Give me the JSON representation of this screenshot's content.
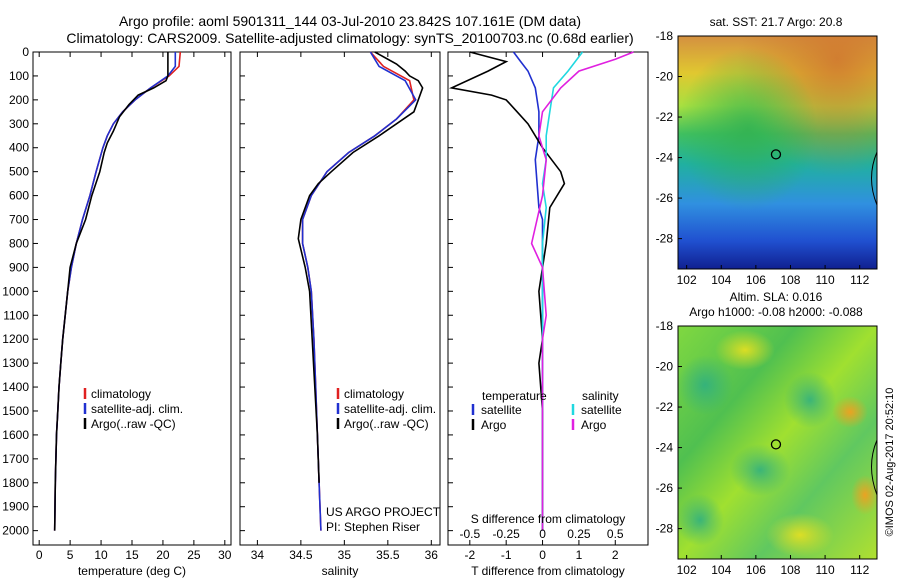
{
  "header": {
    "line1": "Argo profile: aoml 5901311_144 03-Jul-2010 23.842S 107.161E (DM data)",
    "line2": "Climatology: CARS2009. Satellite-adjusted climatology: synTS_20100703.nc (0.68d earlier)"
  },
  "colors": {
    "climatology": "#e02020",
    "satellite": "#2030d0",
    "argo": "#000000",
    "salinity_sat": "#20d8e0",
    "salinity_argo": "#e020e0"
  },
  "credits": {
    "project": "US ARGO PROJECT",
    "pi": "PI: Stephen Riser"
  },
  "watermark": "©IMOS 02-Aug-2017 20:52:10",
  "chart_data": [
    {
      "type": "line",
      "xlabel": "temperature (deg C)",
      "ylabel": "",
      "xlim": [
        -1,
        31
      ],
      "ylim": [
        2060,
        0
      ],
      "xticks": [
        0,
        5,
        10,
        15,
        20,
        25,
        30
      ],
      "yticks": [
        0,
        100,
        200,
        300,
        400,
        500,
        600,
        700,
        800,
        900,
        1000,
        1100,
        1200,
        1300,
        1400,
        1500,
        1600,
        1700,
        1800,
        1900,
        2000
      ],
      "legend": [
        "climatology",
        "satellite-adj. clim.",
        "Argo(..raw -QC)"
      ],
      "series": [
        {
          "name": "climatology",
          "color": "#e02020",
          "x": [
            22.8,
            22.6,
            21,
            18,
            15.5,
            13.5,
            12,
            11,
            10.3,
            9.2,
            8.2,
            7,
            6,
            5.2,
            4.6,
            4.2,
            3.8,
            3.5,
            3.2,
            3,
            2.8,
            2.6,
            2.5
          ],
          "y": [
            0,
            60,
            100,
            150,
            200,
            250,
            300,
            350,
            400,
            500,
            600,
            700,
            800,
            900,
            1000,
            1100,
            1200,
            1300,
            1400,
            1500,
            1600,
            1800,
            2000
          ]
        },
        {
          "name": "satellite-adj. clim.",
          "color": "#2030d0",
          "x": [
            22,
            22,
            20.8,
            18,
            15.5,
            13.5,
            12,
            11,
            10.3,
            9.2,
            8.2,
            7,
            6,
            5.2,
            4.6,
            4.2,
            3.8,
            3.5,
            3.2,
            3,
            2.8,
            2.6,
            2.5
          ],
          "y": [
            0,
            60,
            100,
            150,
            200,
            250,
            300,
            350,
            400,
            500,
            600,
            700,
            800,
            900,
            1000,
            1100,
            1200,
            1300,
            1400,
            1500,
            1600,
            1800,
            2000
          ]
        },
        {
          "name": "Argo(..raw -QC)",
          "color": "#000000",
          "x": [
            20.8,
            20.8,
            20.5,
            18.5,
            16,
            14.5,
            13,
            12,
            11,
            10.5,
            9.8,
            8.5,
            7.5,
            6,
            5,
            4.6,
            4.2,
            3.8,
            3.5,
            3.2,
            3,
            2.8,
            2.6,
            2.5
          ],
          "y": [
            0,
            100,
            120,
            150,
            180,
            220,
            270,
            330,
            380,
            420,
            500,
            600,
            700,
            800,
            900,
            1000,
            1100,
            1200,
            1300,
            1400,
            1500,
            1600,
            1800,
            2000
          ]
        }
      ]
    },
    {
      "type": "line",
      "xlabel": "salinity",
      "ylabel": "",
      "xlim": [
        33.8,
        36.1
      ],
      "ylim": [
        2060,
        0
      ],
      "xticks": [
        34,
        34.5,
        35,
        35.5,
        36
      ],
      "legend": [
        "climatology",
        "satellite-adj. clim.",
        "Argo(..raw -QC)"
      ],
      "series": [
        {
          "name": "climatology",
          "color": "#e02020",
          "x": [
            35.3,
            35.45,
            35.75,
            35.8,
            35.6,
            35.35,
            35.05,
            34.8,
            34.62,
            34.52,
            34.52,
            34.58,
            34.62,
            34.65,
            34.67,
            34.69,
            34.71,
            34.72,
            34.73
          ],
          "y": [
            0,
            60,
            120,
            200,
            280,
            350,
            420,
            500,
            600,
            700,
            800,
            900,
            1000,
            1200,
            1400,
            1600,
            1800,
            1900,
            2000
          ]
        },
        {
          "name": "satellite-adj. clim.",
          "color": "#2030d0",
          "x": [
            35.3,
            35.4,
            35.7,
            35.82,
            35.6,
            35.35,
            35.05,
            34.8,
            34.62,
            34.52,
            34.52,
            34.58,
            34.62,
            34.65,
            34.67,
            34.69,
            34.71,
            34.72,
            34.73
          ],
          "y": [
            0,
            60,
            120,
            200,
            280,
            350,
            420,
            500,
            600,
            700,
            800,
            900,
            1000,
            1200,
            1400,
            1600,
            1800,
            1900,
            2000
          ]
        },
        {
          "name": "Argo(..raw -QC)",
          "color": "#000000",
          "x": [
            35.35,
            35.6,
            35.7,
            35.75,
            35.85,
            35.9,
            35.85,
            35.8,
            35.6,
            35.4,
            35.1,
            34.85,
            34.7,
            34.6,
            34.5,
            34.47,
            34.55,
            34.6,
            34.63,
            34.66,
            34.69,
            34.71
          ],
          "y": [
            0,
            50,
            80,
            100,
            120,
            150,
            200,
            250,
            300,
            350,
            420,
            500,
            550,
            600,
            700,
            780,
            900,
            1000,
            1200,
            1400,
            1600,
            1800
          ]
        }
      ]
    },
    {
      "type": "line",
      "xlabel": "T difference from climatology",
      "top_label": "S difference from climatology",
      "xlim": [
        -2.6,
        2.9
      ],
      "ylim": [
        2060,
        0
      ],
      "xticks": [
        -2,
        -1,
        0,
        1,
        2
      ],
      "top_ticks": [
        "-0.5",
        "-0.25",
        "0",
        "0.25",
        "0.5"
      ],
      "top_ticks_at": [
        -2,
        -1,
        0,
        1,
        2
      ],
      "legend": {
        "temperature": [
          "satellite",
          "Argo"
        ],
        "salinity": [
          "satellite",
          "Argo"
        ],
        "temperature_title": "temperature",
        "salinity_title": "salinity"
      },
      "series": [
        {
          "name": "temperature satellite",
          "color": "#2030d0",
          "x": [
            -0.8,
            -0.6,
            -0.4,
            -0.2,
            -0.1,
            -0.1,
            -0.2,
            -0.1,
            0,
            0,
            0
          ],
          "y": [
            0,
            40,
            80,
            150,
            250,
            350,
            450,
            650,
            700,
            900,
            2000
          ]
        },
        {
          "name": "temperature Argo",
          "color": "#000000",
          "x": [
            -2,
            -1,
            -1.5,
            -2.5,
            -1.4,
            -1,
            -0.7,
            -0.4,
            0,
            0.5,
            0.6,
            0.2,
            0.1,
            -0.1,
            0,
            -0.1,
            0,
            0
          ],
          "y": [
            0,
            40,
            80,
            150,
            180,
            200,
            250,
            300,
            400,
            500,
            550,
            650,
            800,
            1000,
            1200,
            1300,
            1500,
            2000
          ]
        },
        {
          "name": "salinity satellite",
          "color": "#20d8e0",
          "x": [
            1.1,
            0.7,
            0.3,
            0.2,
            0.1,
            0.1,
            0,
            0.1,
            0,
            0,
            0
          ],
          "y": [
            0,
            80,
            150,
            250,
            350,
            450,
            550,
            650,
            800,
            1000,
            2000
          ]
        },
        {
          "name": "salinity Argo",
          "color": "#e020e0",
          "x": [
            2.5,
            2,
            1,
            0.5,
            0,
            -0.1,
            0.1,
            0,
            -0.3,
            0,
            0.1,
            0,
            0
          ],
          "y": [
            0,
            30,
            80,
            150,
            250,
            350,
            450,
            600,
            800,
            900,
            1100,
            1200,
            2000
          ]
        }
      ]
    },
    {
      "type": "heatmap",
      "title": "sat. SST: 21.7 Argo: 20.8",
      "xlim": [
        101.5,
        113
      ],
      "ylim": [
        -29.5,
        -18
      ],
      "xticks": [
        102,
        104,
        106,
        108,
        110,
        112
      ],
      "yticks": [
        -18,
        -20,
        -22,
        -24,
        -26,
        -28
      ],
      "marker": {
        "x": 107.161,
        "y": -23.842
      }
    },
    {
      "type": "heatmap",
      "title": "Altim. SLA: 0.016",
      "subtitle": "Argo h1000: -0.08 h2000: -0.088",
      "xlim": [
        101.5,
        113
      ],
      "ylim": [
        -29.5,
        -18
      ],
      "xticks": [
        102,
        104,
        106,
        108,
        110,
        112
      ],
      "yticks": [
        -18,
        -20,
        -22,
        -24,
        -26,
        -28
      ],
      "marker": {
        "x": 107.161,
        "y": -23.842
      }
    }
  ]
}
